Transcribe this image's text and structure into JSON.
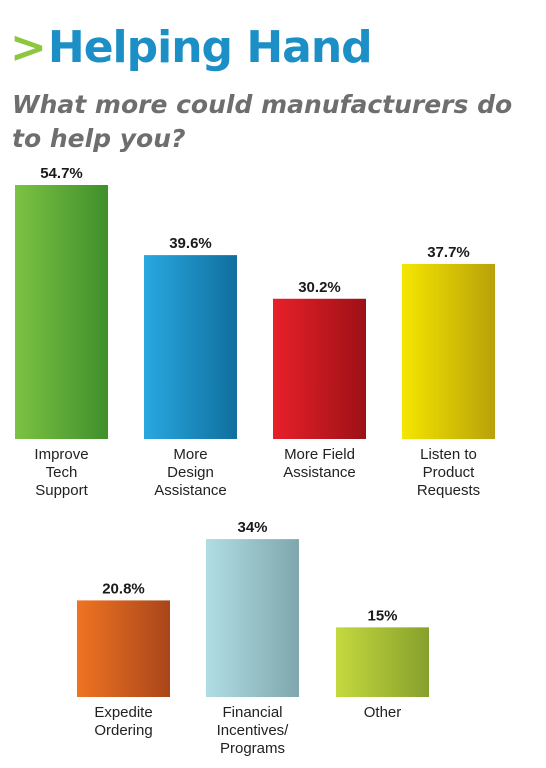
{
  "header": {
    "chevron": ">",
    "title": "Helping Hand",
    "subtitle": "What more could manufacturers do to help you?"
  },
  "chart_data": {
    "type": "bar",
    "unit": "%",
    "grid": false,
    "categories": [
      "Improve Tech Support",
      "More Design Assistance",
      "More Field Assistance",
      "Listen to Product Requests",
      "Expedite Ordering",
      "Financial Incentives/ Programs",
      "Other"
    ],
    "category_lines": [
      [
        "Improve",
        "Tech",
        "Support"
      ],
      [
        "More",
        "Design",
        "Assistance"
      ],
      [
        "More Field",
        "Assistance"
      ],
      [
        "Listen to",
        "Product",
        "Requests"
      ],
      [
        "Expedite",
        "Ordering"
      ],
      [
        "Financial",
        "Incentives/",
        "Programs"
      ],
      [
        "Other"
      ]
    ],
    "values": [
      54.7,
      39.6,
      30.2,
      37.7,
      20.8,
      34,
      15
    ],
    "value_labels": [
      "54.7%",
      "39.6%",
      "30.2%",
      "37.7%",
      "20.8%",
      "34%",
      "15%"
    ],
    "colors": [
      [
        "#7cc243",
        "#3f8f2c"
      ],
      [
        "#29a8e0",
        "#0f6f9e"
      ],
      [
        "#e8202a",
        "#9c1116"
      ],
      [
        "#f5e600",
        "#b8a10a"
      ],
      [
        "#ef7422",
        "#a9451a"
      ],
      [
        "#b0dde4",
        "#7fa7ad"
      ],
      [
        "#c4d93f",
        "#86a02c"
      ]
    ]
  }
}
